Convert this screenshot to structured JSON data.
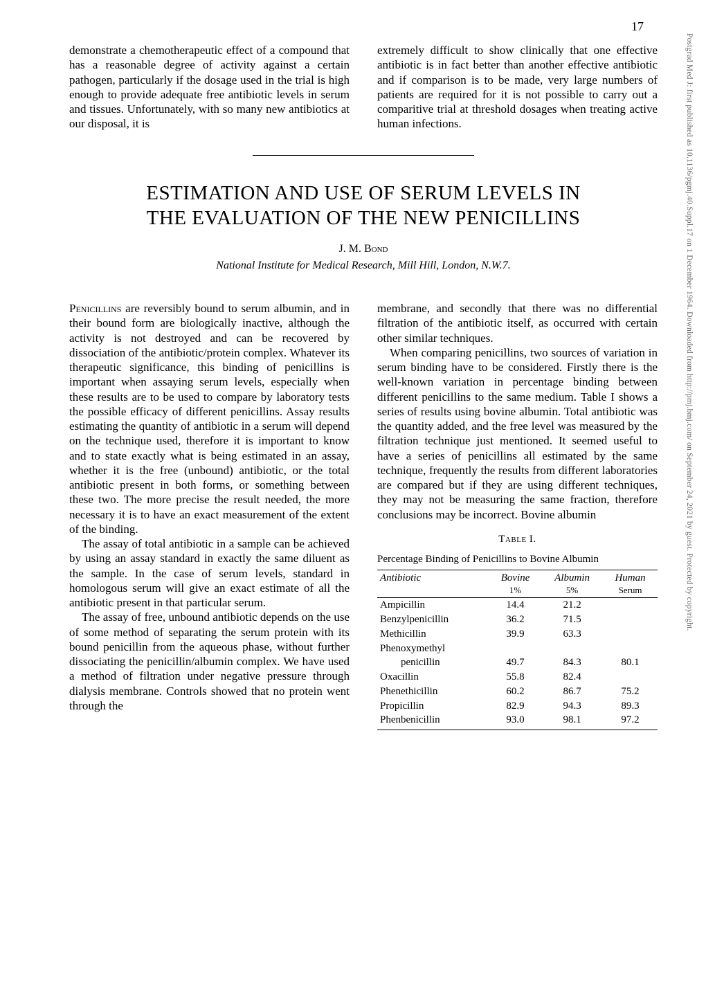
{
  "page_number": "17",
  "watermark": "Postgrad Med J: first published as 10.1136/pgmj.40.Suppl.17 on 1 December 1964. Downloaded from http://pmj.bmj.com/ on September 24, 2021 by guest. Protected by copyright.",
  "intro": {
    "left": "demonstrate a chemotherapeutic effect of a compound that has a reasonable degree of activity against a certain pathogen, particularly if the dosage used in the trial is high enough to provide adequate free antibiotic levels in serum and tissues. Unfortunately, with so many new antibiotics at our disposal, it is",
    "right": "extremely difficult to show clinically that one effective antibiotic is in fact better than another effective antibiotic and if comparison is to be made, very large numbers of patients are required for it is not possible to carry out a comparitive trial at threshold dosages when treating active human infections."
  },
  "title_line1": "ESTIMATION AND USE OF SERUM LEVELS IN",
  "title_line2": "THE EVALUATION OF THE NEW PENICILLINS",
  "author": "J. M. Bond",
  "affiliation": "National Institute for Medical Research, Mill Hill, London, N.W.7.",
  "body": {
    "p1_lead": "Penicillins",
    "p1": " are reversibly bound to serum albumin, and in their bound form are biologically inactive, although the activity is not destroyed and can be recovered by dissociation of the antibiotic/protein complex. Whatever its therapeutic significance, this binding of penicillins is important when assaying serum levels, especially when these results are to be used to compare by laboratory tests the possible efficacy of different penicillins. Assay results estimating the quantity of antibiotic in a serum will depend on the technique used, therefore it is important to know and to state exactly what is being estimated in an assay, whether it is the free (unbound) antibiotic, or the total antibiotic present in both forms, or something between these two. The more precise the result needed, the more necessary it is to have an exact measurement of the extent of the binding.",
    "p2": "The assay of total antibiotic in a sample can be achieved by using an assay standard in exactly the same diluent as the sample. In the case of serum levels, standard in homologous serum will give an exact estimate of all the antibiotic present in that particular serum.",
    "p3": "The assay of free, unbound antibiotic depends on the use of some method of separating the serum protein with its bound penicillin from the aqueous phase, without further dissociating the penicillin/albumin complex. We have used a method of filtration under negative pressure through dialysis membrane. Controls showed that no protein went through the",
    "p4": "membrane, and secondly that there was no differential filtration of the antibiotic itself, as occurred with certain other similar techniques.",
    "p5": "When comparing penicillins, two sources of variation in serum binding have to be considered. Firstly there is the well-known variation in percentage binding between different penicillins to the same medium. Table I shows a series of results using bovine albumin. Total antibiotic was the quantity added, and the free level was measured by the filtration technique just mentioned. It seemed useful to have a series of penicillins all estimated by the same technique, frequently the results from different laboratories are compared but if they are using different techniques, they may not be measuring the same fraction, therefore conclusions may be incorrect. Bovine albumin"
  },
  "table": {
    "label": "Table I.",
    "caption": "Percentage Binding of Penicillins to Bovine Albumin",
    "columns": [
      {
        "head": "Antibiotic",
        "sub": ""
      },
      {
        "head": "Bovine",
        "sub": "1%"
      },
      {
        "head": "Albumin",
        "sub": "5%"
      },
      {
        "head": "Human",
        "sub": "Serum"
      }
    ],
    "rows": [
      [
        "Ampicillin",
        "14.4",
        "21.2",
        ""
      ],
      [
        "Benzylpenicillin",
        "36.2",
        "71.5",
        ""
      ],
      [
        "Methicillin",
        "39.9",
        "63.3",
        ""
      ],
      [
        "Phenoxymethyl",
        "",
        "",
        ""
      ],
      [
        "        penicillin",
        "49.7",
        "84.3",
        "80.1"
      ],
      [
        "Oxacillin",
        "55.8",
        "82.4",
        ""
      ],
      [
        "Phenethicillin",
        "60.2",
        "86.7",
        "75.2"
      ],
      [
        "Propicillin",
        "82.9",
        "94.3",
        "89.3"
      ],
      [
        "Phenbenicillin",
        "93.0",
        "98.1",
        "97.2"
      ]
    ]
  }
}
